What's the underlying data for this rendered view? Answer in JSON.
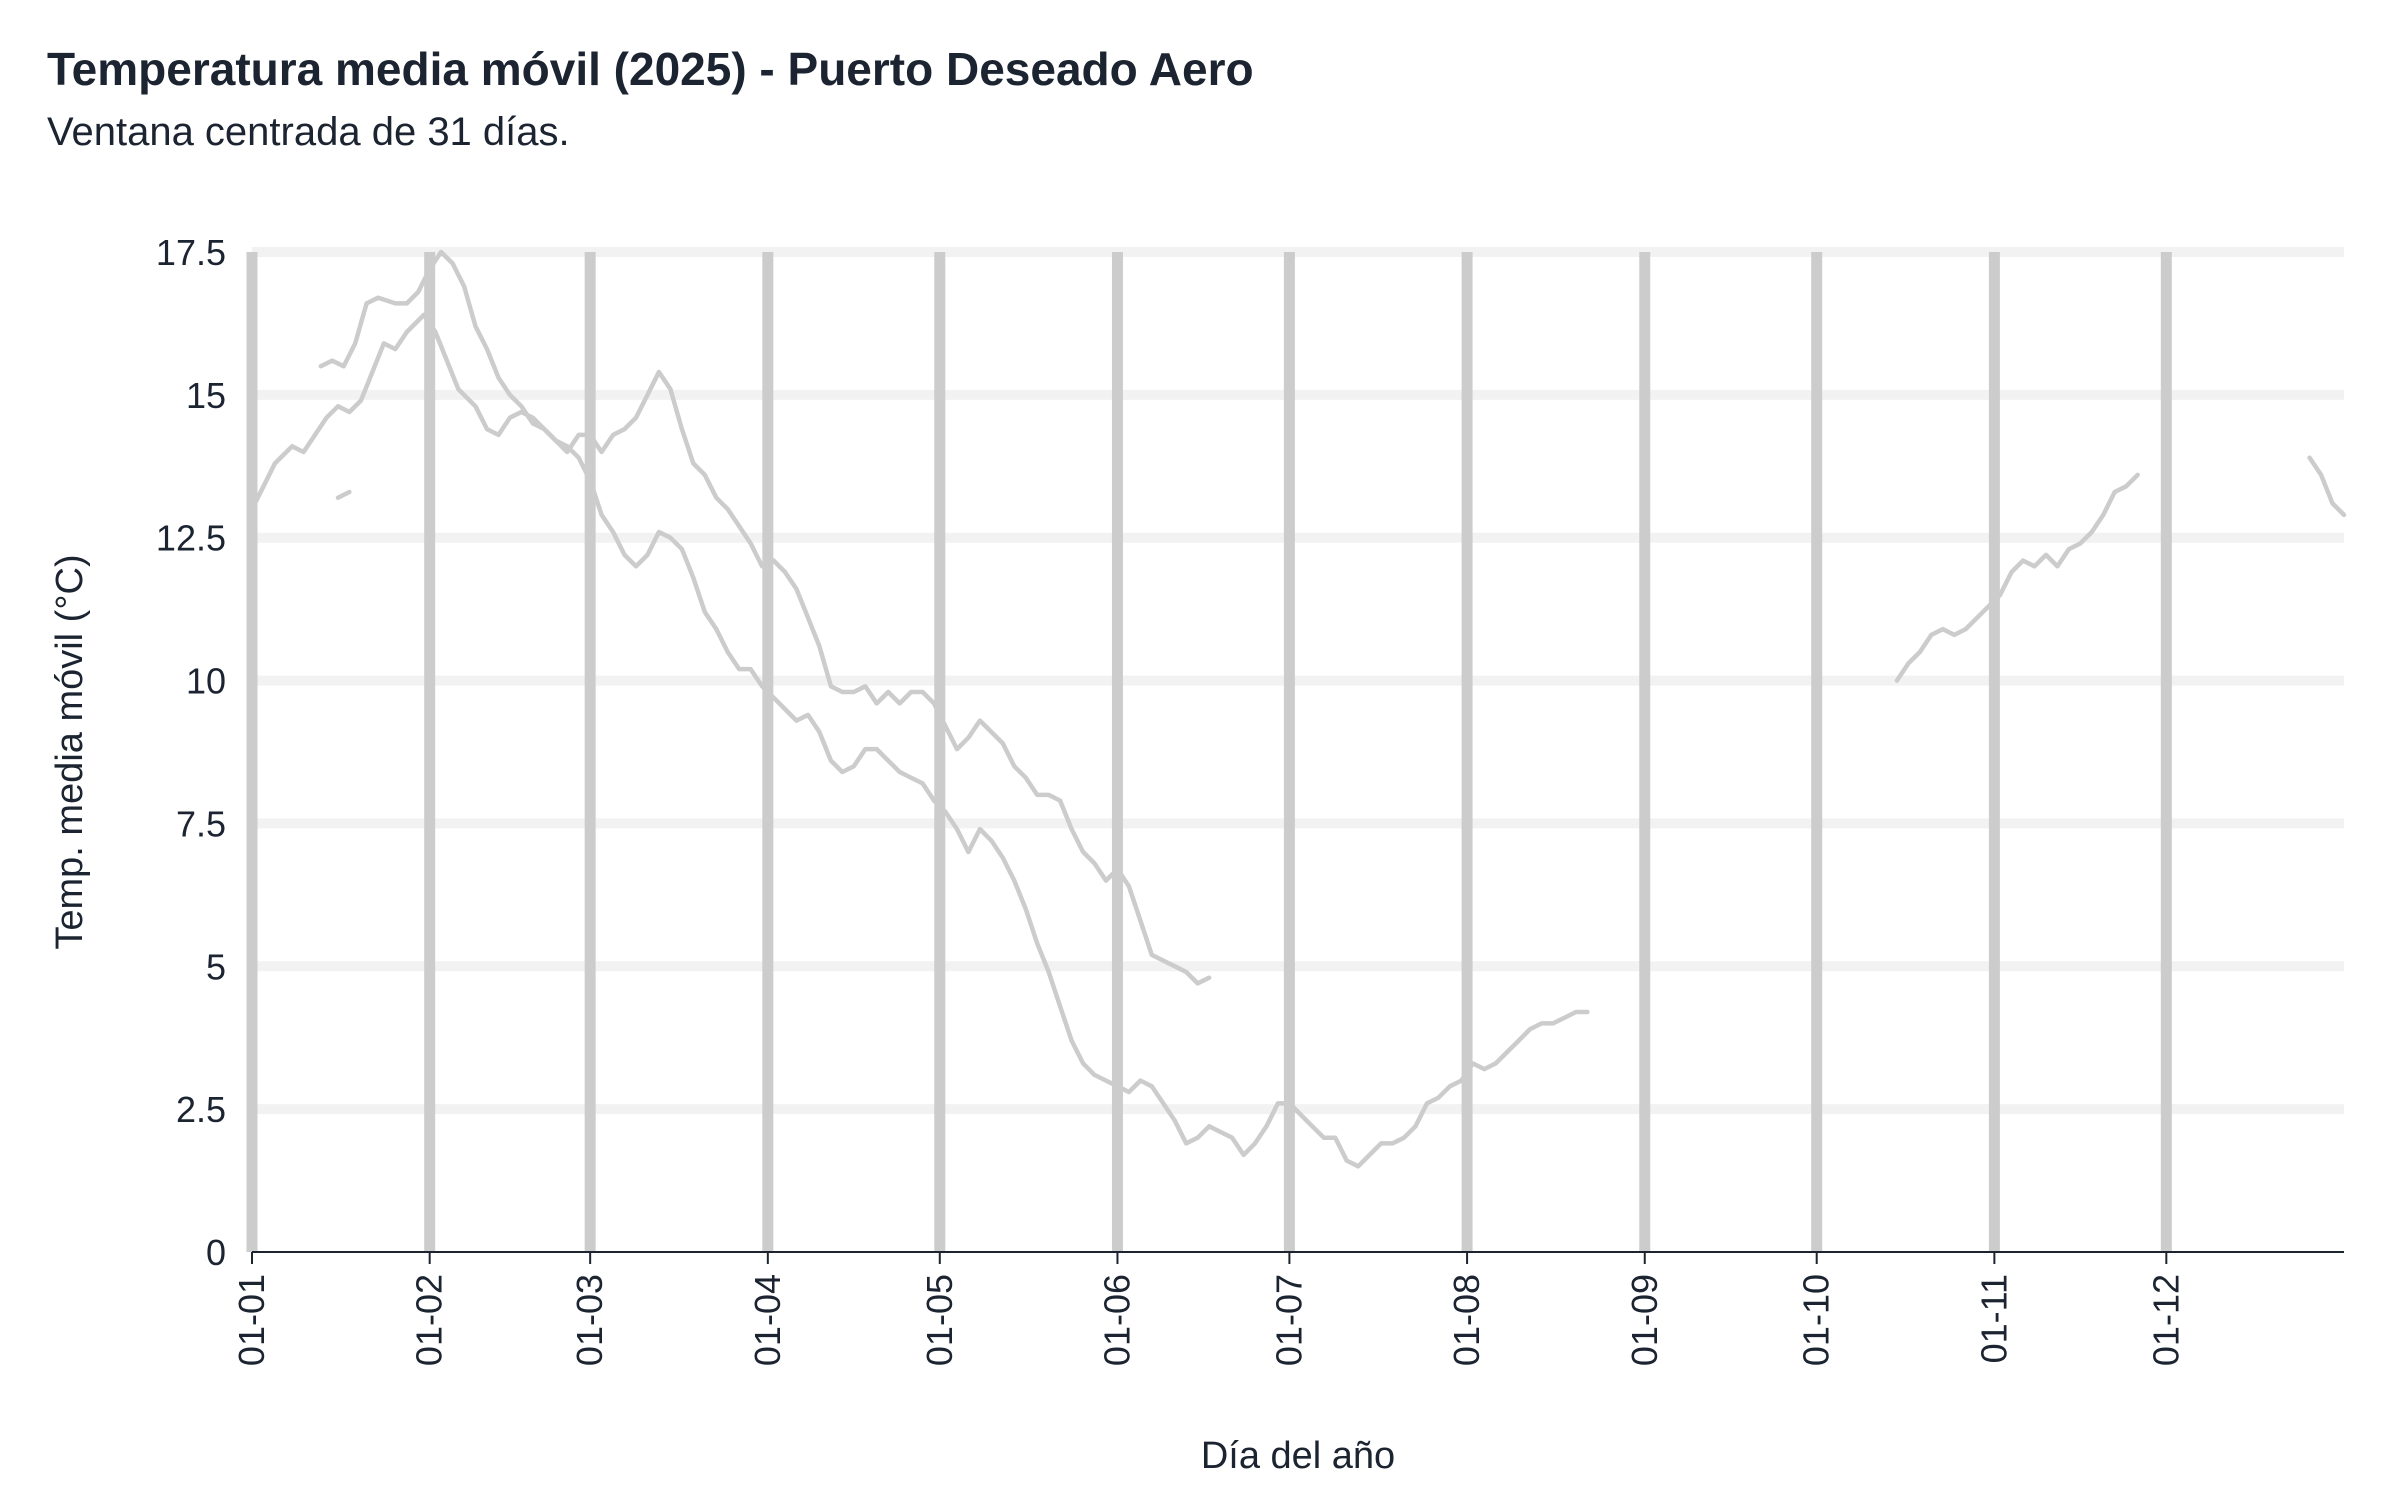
{
  "title": "Temperatura media móvil (2025) - Puerto Deseado Aero",
  "subtitle": "Ventana centrada de 31 días.",
  "chart_data": {
    "type": "line",
    "title": "Temperatura media móvil (2025) - Puerto Deseado Aero",
    "subtitle": "Ventana centrada de 31 días.",
    "xlabel": "Día del año",
    "ylabel": "Temp. media móvil (°C)",
    "xlim": [
      1,
      366
    ],
    "ylim": [
      0,
      17.5
    ],
    "yticks": [
      0,
      2.5,
      5,
      7.5,
      10,
      12.5,
      15,
      17.5
    ],
    "ytick_labels": [
      "0",
      "2.5",
      "5",
      "7.5",
      "10",
      "12.5",
      "15",
      "17.5"
    ],
    "xticks": [
      1,
      32,
      60,
      91,
      121,
      152,
      182,
      213,
      244,
      274,
      305,
      335
    ],
    "xtick_labels": [
      "01-01",
      "01-02",
      "01-03",
      "01-04",
      "01-05",
      "01-06",
      "01-07",
      "01-08",
      "01-09",
      "01-10",
      "01-11",
      "01-12"
    ],
    "grid": "horizontal",
    "month_markers": "vertical gray bars at month starts",
    "colors": {
      "series": "#cccccc",
      "month_bar": "#cccccc",
      "grid": "#f2f2f2",
      "axis": "#1b2430",
      "text": "#1b2430"
    },
    "series": [
      {
        "values": [
          [
            1,
            13.0
          ],
          [
            3,
            13.4
          ],
          [
            5,
            13.8
          ],
          [
            8,
            14.1
          ],
          [
            10,
            14.0
          ],
          [
            12,
            14.3
          ],
          [
            14,
            14.6
          ],
          [
            16,
            14.8
          ],
          [
            18,
            14.7
          ],
          [
            20,
            14.9
          ],
          [
            22,
            15.4
          ],
          [
            24,
            15.9
          ],
          [
            26,
            15.8
          ],
          [
            28,
            16.1
          ],
          [
            31,
            16.4
          ],
          [
            33,
            16.1
          ],
          [
            35,
            15.6
          ],
          [
            37,
            15.1
          ],
          [
            40,
            14.8
          ],
          [
            42,
            14.4
          ],
          [
            44,
            14.3
          ],
          [
            46,
            14.6
          ],
          [
            48,
            14.7
          ],
          [
            50,
            14.6
          ],
          [
            52,
            14.4
          ],
          [
            54,
            14.2
          ],
          [
            56,
            14.0
          ],
          [
            58,
            14.3
          ],
          [
            60,
            14.3
          ],
          [
            62,
            14.0
          ],
          [
            64,
            14.3
          ],
          [
            66,
            14.4
          ],
          [
            68,
            14.6
          ],
          [
            70,
            15.0
          ],
          [
            72,
            15.4
          ],
          [
            74,
            15.1
          ],
          [
            76,
            14.4
          ],
          [
            78,
            13.8
          ],
          [
            80,
            13.6
          ],
          [
            82,
            13.2
          ],
          [
            84,
            13.0
          ],
          [
            86,
            12.7
          ],
          [
            88,
            12.4
          ],
          [
            90,
            12.0
          ],
          [
            92,
            12.1
          ],
          [
            94,
            11.9
          ],
          [
            96,
            11.6
          ],
          [
            98,
            11.1
          ],
          [
            100,
            10.6
          ],
          [
            102,
            9.9
          ],
          [
            104,
            9.8
          ],
          [
            106,
            9.8
          ],
          [
            108,
            9.9
          ],
          [
            110,
            9.6
          ],
          [
            112,
            9.8
          ],
          [
            114,
            9.6
          ],
          [
            116,
            9.8
          ],
          [
            118,
            9.8
          ],
          [
            120,
            9.6
          ],
          [
            122,
            9.2
          ],
          [
            124,
            8.8
          ],
          [
            126,
            9.0
          ],
          [
            128,
            9.3
          ],
          [
            130,
            9.1
          ],
          [
            132,
            8.9
          ],
          [
            134,
            8.5
          ],
          [
            136,
            8.3
          ],
          [
            138,
            8.0
          ],
          [
            140,
            8.0
          ],
          [
            142,
            7.9
          ],
          [
            144,
            7.4
          ],
          [
            146,
            7.0
          ],
          [
            148,
            6.8
          ],
          [
            150,
            6.5
          ],
          [
            152,
            6.7
          ],
          [
            154,
            6.4
          ],
          [
            156,
            5.8
          ],
          [
            158,
            5.2
          ],
          [
            160,
            5.1
          ],
          [
            162,
            5.0
          ],
          [
            164,
            4.9
          ],
          [
            166,
            4.7
          ],
          [
            168,
            4.8
          ]
        ]
      },
      {
        "values": [
          [
            13,
            15.5
          ],
          [
            15,
            15.6
          ],
          [
            17,
            15.5
          ],
          [
            19,
            15.9
          ],
          [
            21,
            16.6
          ],
          [
            23,
            16.7
          ],
          [
            26,
            16.6
          ],
          [
            28,
            16.6
          ],
          [
            30,
            16.8
          ],
          [
            32,
            17.2
          ],
          [
            34,
            17.5
          ],
          [
            36,
            17.3
          ],
          [
            38,
            16.9
          ],
          [
            40,
            16.2
          ],
          [
            42,
            15.8
          ],
          [
            44,
            15.3
          ],
          [
            46,
            15.0
          ],
          [
            48,
            14.8
          ],
          [
            50,
            14.5
          ],
          [
            52,
            14.4
          ],
          [
            54,
            14.2
          ],
          [
            56,
            14.1
          ],
          [
            58,
            13.9
          ],
          [
            60,
            13.5
          ],
          [
            62,
            12.9
          ],
          [
            64,
            12.6
          ],
          [
            66,
            12.2
          ],
          [
            68,
            12.0
          ],
          [
            70,
            12.2
          ],
          [
            72,
            12.6
          ],
          [
            74,
            12.5
          ],
          [
            76,
            12.3
          ],
          [
            78,
            11.8
          ],
          [
            80,
            11.2
          ],
          [
            82,
            10.9
          ],
          [
            84,
            10.5
          ],
          [
            86,
            10.2
          ],
          [
            88,
            10.2
          ],
          [
            90,
            9.9
          ],
          [
            92,
            9.7
          ],
          [
            94,
            9.5
          ],
          [
            96,
            9.3
          ],
          [
            98,
            9.4
          ],
          [
            100,
            9.1
          ],
          [
            102,
            8.6
          ],
          [
            104,
            8.4
          ],
          [
            106,
            8.5
          ],
          [
            108,
            8.8
          ],
          [
            110,
            8.8
          ],
          [
            112,
            8.6
          ],
          [
            114,
            8.4
          ],
          [
            116,
            8.3
          ],
          [
            118,
            8.2
          ],
          [
            120,
            7.9
          ],
          [
            122,
            7.7
          ],
          [
            124,
            7.4
          ],
          [
            126,
            7.0
          ],
          [
            128,
            7.4
          ],
          [
            130,
            7.2
          ],
          [
            132,
            6.9
          ],
          [
            134,
            6.5
          ],
          [
            136,
            6.0
          ],
          [
            138,
            5.4
          ],
          [
            140,
            4.9
          ],
          [
            142,
            4.3
          ],
          [
            144,
            3.7
          ],
          [
            146,
            3.3
          ],
          [
            148,
            3.1
          ],
          [
            150,
            3.0
          ],
          [
            152,
            2.9
          ],
          [
            154,
            2.8
          ],
          [
            156,
            3.0
          ],
          [
            158,
            2.9
          ],
          [
            160,
            2.6
          ],
          [
            162,
            2.3
          ],
          [
            164,
            1.9
          ],
          [
            166,
            2.0
          ],
          [
            168,
            2.2
          ],
          [
            170,
            2.1
          ],
          [
            172,
            2.0
          ],
          [
            174,
            1.7
          ],
          [
            176,
            1.9
          ],
          [
            178,
            2.2
          ],
          [
            180,
            2.6
          ],
          [
            182,
            2.6
          ],
          [
            184,
            2.4
          ],
          [
            186,
            2.2
          ],
          [
            188,
            2.0
          ],
          [
            190,
            2.0
          ],
          [
            192,
            1.6
          ],
          [
            194,
            1.5
          ],
          [
            196,
            1.7
          ],
          [
            198,
            1.9
          ],
          [
            200,
            1.9
          ],
          [
            202,
            2.0
          ],
          [
            204,
            2.2
          ],
          [
            206,
            2.6
          ],
          [
            208,
            2.7
          ],
          [
            210,
            2.9
          ],
          [
            212,
            3.0
          ],
          [
            214,
            3.3
          ],
          [
            216,
            3.2
          ],
          [
            218,
            3.3
          ],
          [
            220,
            3.5
          ],
          [
            222,
            3.7
          ],
          [
            224,
            3.9
          ],
          [
            226,
            4.0
          ],
          [
            228,
            4.0
          ],
          [
            230,
            4.1
          ],
          [
            232,
            4.2
          ],
          [
            234,
            4.2
          ]
        ]
      },
      {
        "values": [
          [
            16,
            13.2
          ],
          [
            18,
            13.3
          ]
        ]
      },
      {
        "values": [
          [
            288,
            10.0
          ],
          [
            290,
            10.3
          ],
          [
            292,
            10.5
          ],
          [
            294,
            10.8
          ],
          [
            296,
            10.9
          ],
          [
            298,
            10.8
          ],
          [
            300,
            10.9
          ],
          [
            302,
            11.1
          ],
          [
            304,
            11.3
          ],
          [
            306,
            11.5
          ],
          [
            308,
            11.9
          ],
          [
            310,
            12.1
          ],
          [
            312,
            12.0
          ],
          [
            314,
            12.2
          ],
          [
            316,
            12.0
          ],
          [
            318,
            12.3
          ],
          [
            320,
            12.4
          ],
          [
            322,
            12.6
          ],
          [
            324,
            12.9
          ],
          [
            326,
            13.3
          ],
          [
            328,
            13.4
          ],
          [
            330,
            13.6
          ]
        ]
      },
      {
        "values": [
          [
            360,
            13.9
          ],
          [
            362,
            13.6
          ],
          [
            364,
            13.1
          ],
          [
            366,
            12.9
          ]
        ]
      }
    ]
  }
}
